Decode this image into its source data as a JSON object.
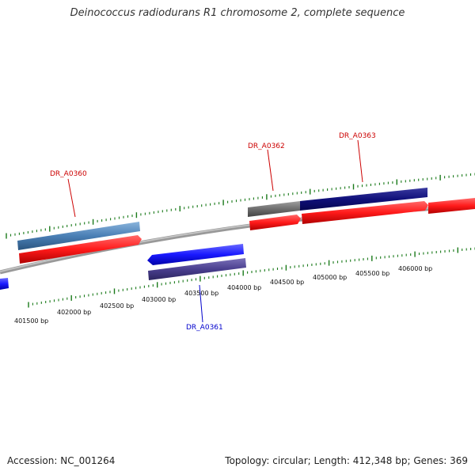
{
  "title": "Deinococcus radiodurans R1 chromosome 2, complete sequence",
  "footer": {
    "accession": "Accession: NC_001264",
    "summary": "Topology: circular; Length: 412,348 bp; Genes: 369"
  },
  "scale_ticks": [
    {
      "label": "401500 bp"
    },
    {
      "label": "402000 bp"
    },
    {
      "label": "402500 bp"
    },
    {
      "label": "403000 bp"
    },
    {
      "label": "403500 bp"
    },
    {
      "label": "404000 bp"
    },
    {
      "label": "404500 bp"
    },
    {
      "label": "405000 bp"
    },
    {
      "label": "405500 bp"
    },
    {
      "label": "406000 bp"
    }
  ],
  "gene_labels": [
    {
      "name": "DR_A0360",
      "color": "#cc0000"
    },
    {
      "name": "DR_A0361",
      "color": "#0000cc"
    },
    {
      "name": "DR_A0362",
      "color": "#cc0000"
    },
    {
      "name": "DR_A0363",
      "color": "#cc0000"
    }
  ],
  "colors": {
    "forward_cds": "#ff1a1a",
    "reverse_cds": "#1a1aff",
    "gene_steelblue": "#4a7fb5",
    "gene_navy": "#10107a",
    "gene_slate": "#4a3f8f",
    "gene_gray": "#6e6e6e",
    "tick_green": "#1a7a1a",
    "backbone": "#888888"
  }
}
